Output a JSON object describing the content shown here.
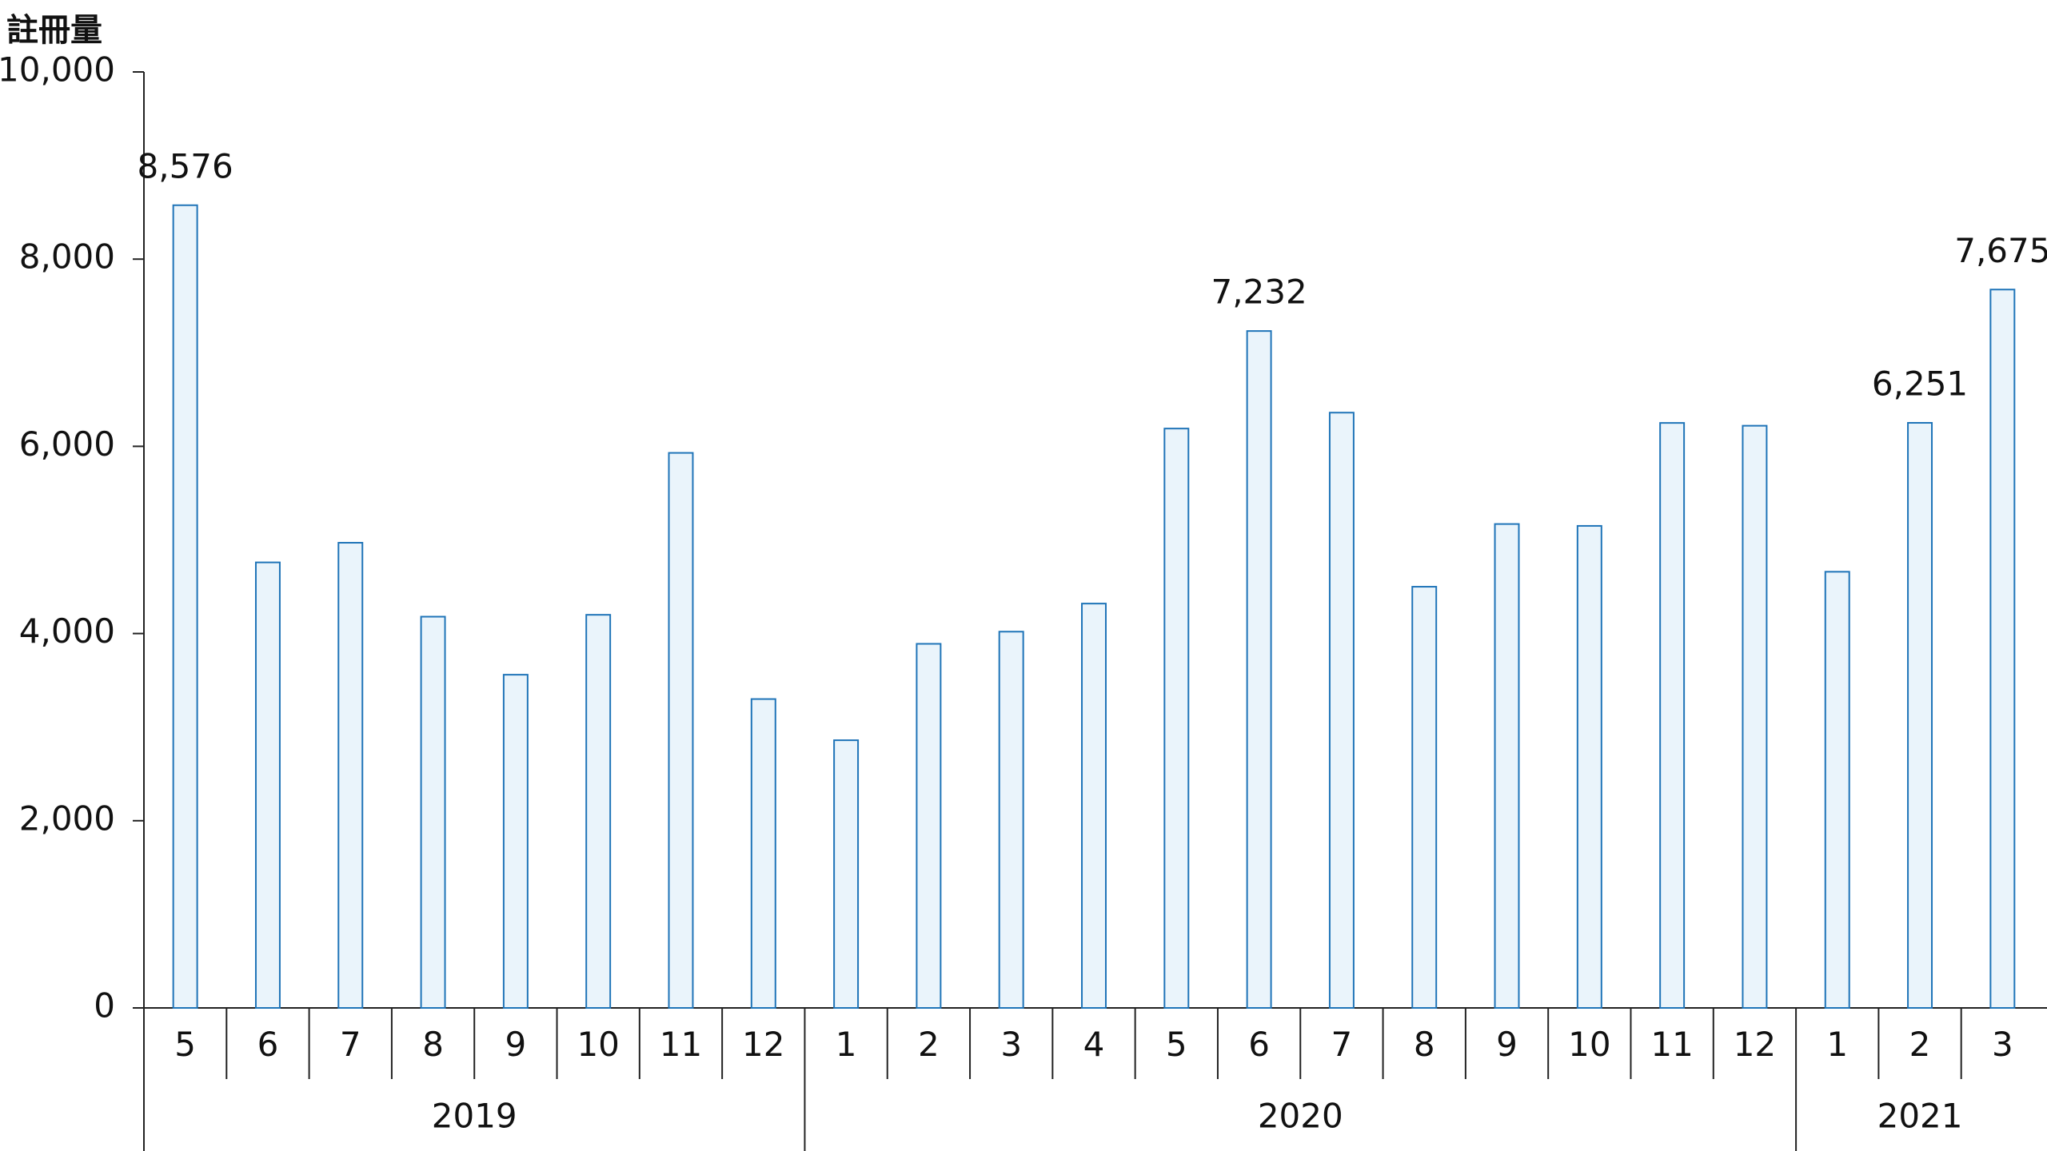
{
  "chart_data": {
    "type": "bar",
    "y_label": "註冊量",
    "groups": [
      {
        "name": "2019",
        "categories": [
          "5",
          "6",
          "7",
          "8",
          "9",
          "10",
          "11",
          "12"
        ]
      },
      {
        "name": "2020",
        "categories": [
          "1",
          "2",
          "3",
          "4",
          "5",
          "6",
          "7",
          "8",
          "9",
          "10",
          "11",
          "12"
        ]
      },
      {
        "name": "2021",
        "categories": [
          "1",
          "2",
          "3"
        ]
      }
    ],
    "values": [
      8576,
      4760,
      4970,
      4180,
      3560,
      4200,
      5930,
      3300,
      2860,
      3890,
      4020,
      4320,
      6190,
      7232,
      6360,
      4500,
      5170,
      5150,
      6250,
      6220,
      4660,
      6251,
      7675
    ],
    "value_labels": [
      "8,576",
      null,
      null,
      null,
      null,
      null,
      null,
      null,
      null,
      null,
      null,
      null,
      null,
      "7,232",
      null,
      null,
      null,
      null,
      null,
      null,
      null,
      "6,251",
      "7,675"
    ],
    "color": "#eaf4fb",
    "edge_color": "#1f74b8",
    "ylim": [
      0,
      10000
    ],
    "yticks": [
      0,
      {
        "value": 2000,
        "label": "2,000"
      },
      {
        "value": 4000,
        "label": "4,000"
      },
      {
        "value": 6000,
        "label": "6,000"
      },
      {
        "value": 8000,
        "label": "8,000"
      },
      {
        "value": 10000,
        "label": "10,000"
      }
    ]
  }
}
